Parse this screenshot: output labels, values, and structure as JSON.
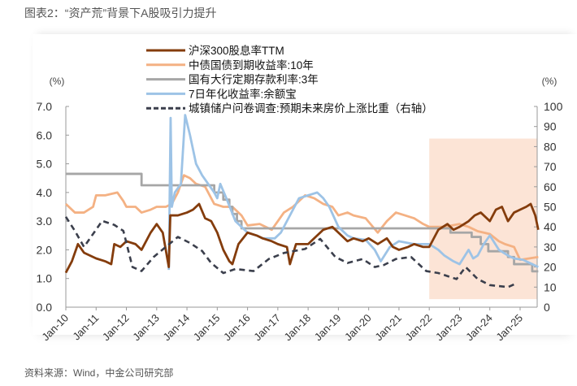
{
  "title": "图表2：“资产荒”背景下A股吸引力提升",
  "source": "资料来源：Wind，中金公司研究部",
  "chart_data": {
    "type": "line",
    "title": "",
    "ylabel_left": "(%)",
    "ylabel_right": "(%)",
    "ylim_left": [
      0,
      7
    ],
    "ylim_right": [
      0,
      100
    ],
    "yticks_left": [
      "0.0",
      "1.0",
      "2.0",
      "3.0",
      "4.0",
      "5.0",
      "6.0",
      "7.0"
    ],
    "yticks_right": [
      "0",
      "10",
      "20",
      "30",
      "40",
      "50",
      "60",
      "70",
      "80",
      "90",
      "100"
    ],
    "xlim": [
      2010.0,
      2025.6
    ],
    "xticks": [
      "Jan-10",
      "Jan-11",
      "Jan-12",
      "Jan-13",
      "Jan-14",
      "Jan-15",
      "Jan-16",
      "Jan-17",
      "Jan-18",
      "Jan-19",
      "Jan-20",
      "Jan-21",
      "Jan-22",
      "Jan-23",
      "Jan-24",
      "Jan-25"
    ],
    "legend_placement": "top-center",
    "grid": false,
    "shaded_region": {
      "x": [
        2022.0,
        2025.6
      ],
      "y_right": [
        4,
        84
      ],
      "color": "#fce4d6"
    },
    "series": [
      {
        "name": "沪深300股息率TTM",
        "axis": "left",
        "color": "#843c0c",
        "style": "solid",
        "points": [
          [
            2010.0,
            1.2
          ],
          [
            2010.2,
            1.6
          ],
          [
            2010.4,
            2.2
          ],
          [
            2010.6,
            1.9
          ],
          [
            2010.8,
            1.8
          ],
          [
            2011.0,
            1.7
          ],
          [
            2011.3,
            1.6
          ],
          [
            2011.5,
            1.5
          ],
          [
            2011.6,
            2.2
          ],
          [
            2011.8,
            2.1
          ],
          [
            2012.0,
            2.3
          ],
          [
            2012.3,
            2.2
          ],
          [
            2012.5,
            2.0
          ],
          [
            2012.8,
            2.6
          ],
          [
            2013.0,
            2.9
          ],
          [
            2013.2,
            2.6
          ],
          [
            2013.4,
            1.4
          ],
          [
            2013.45,
            3.2
          ],
          [
            2013.7,
            3.2
          ],
          [
            2014.0,
            3.3
          ],
          [
            2014.2,
            3.4
          ],
          [
            2014.4,
            3.6
          ],
          [
            2014.6,
            3.1
          ],
          [
            2014.8,
            3.0
          ],
          [
            2015.0,
            2.6
          ],
          [
            2015.2,
            2.0
          ],
          [
            2015.4,
            1.6
          ],
          [
            2015.5,
            1.5
          ],
          [
            2015.7,
            2.2
          ],
          [
            2016.0,
            2.6
          ],
          [
            2016.3,
            2.5
          ],
          [
            2016.5,
            2.4
          ],
          [
            2016.8,
            2.3
          ],
          [
            2017.0,
            2.2
          ],
          [
            2017.3,
            2.1
          ],
          [
            2017.4,
            1.5
          ],
          [
            2017.6,
            2.2
          ],
          [
            2018.0,
            2.2
          ],
          [
            2018.3,
            2.5
          ],
          [
            2018.5,
            2.7
          ],
          [
            2018.8,
            2.8
          ],
          [
            2019.0,
            2.6
          ],
          [
            2019.3,
            2.3
          ],
          [
            2019.5,
            2.4
          ],
          [
            2019.8,
            2.3
          ],
          [
            2020.0,
            2.4
          ],
          [
            2020.3,
            2.2
          ],
          [
            2020.6,
            2.4
          ],
          [
            2020.8,
            2.1
          ],
          [
            2021.0,
            2.0
          ],
          [
            2021.3,
            2.1
          ],
          [
            2021.5,
            2.2
          ],
          [
            2021.8,
            2.1
          ],
          [
            2022.0,
            2.1
          ],
          [
            2022.3,
            2.7
          ],
          [
            2022.6,
            2.9
          ],
          [
            2022.8,
            2.7
          ],
          [
            2023.0,
            2.8
          ],
          [
            2023.3,
            3.0
          ],
          [
            2023.5,
            3.2
          ],
          [
            2023.7,
            3.3
          ],
          [
            2024.0,
            3.0
          ],
          [
            2024.2,
            3.4
          ],
          [
            2024.4,
            3.5
          ],
          [
            2024.6,
            3.0
          ],
          [
            2024.8,
            3.3
          ],
          [
            2025.0,
            3.4
          ],
          [
            2025.2,
            3.5
          ],
          [
            2025.35,
            3.6
          ],
          [
            2025.5,
            3.2
          ],
          [
            2025.6,
            2.7
          ]
        ]
      },
      {
        "name": "中债国债到期收益率:10年",
        "axis": "left",
        "color": "#f4b183",
        "style": "solid",
        "points": [
          [
            2010.0,
            3.6
          ],
          [
            2010.3,
            3.3
          ],
          [
            2010.6,
            3.3
          ],
          [
            2010.9,
            3.5
          ],
          [
            2011.0,
            3.9
          ],
          [
            2011.3,
            3.9
          ],
          [
            2011.7,
            4.0
          ],
          [
            2011.9,
            3.7
          ],
          [
            2012.0,
            3.5
          ],
          [
            2012.3,
            3.5
          ],
          [
            2012.5,
            3.3
          ],
          [
            2012.8,
            3.4
          ],
          [
            2013.0,
            3.5
          ],
          [
            2013.3,
            3.5
          ],
          [
            2013.5,
            3.6
          ],
          [
            2013.7,
            4.0
          ],
          [
            2013.9,
            4.6
          ],
          [
            2014.1,
            4.5
          ],
          [
            2014.3,
            4.3
          ],
          [
            2014.6,
            4.2
          ],
          [
            2014.9,
            3.6
          ],
          [
            2015.2,
            3.5
          ],
          [
            2015.5,
            3.5
          ],
          [
            2015.8,
            3.2
          ],
          [
            2016.0,
            2.85
          ],
          [
            2016.4,
            2.9
          ],
          [
            2016.8,
            2.7
          ],
          [
            2017.0,
            3.0
          ],
          [
            2017.2,
            3.3
          ],
          [
            2017.5,
            3.5
          ],
          [
            2017.9,
            3.9
          ],
          [
            2018.2,
            3.8
          ],
          [
            2018.5,
            3.6
          ],
          [
            2018.8,
            3.5
          ],
          [
            2019.0,
            3.2
          ],
          [
            2019.3,
            3.3
          ],
          [
            2019.5,
            3.2
          ],
          [
            2019.9,
            3.1
          ],
          [
            2020.3,
            2.6
          ],
          [
            2020.6,
            3.0
          ],
          [
            2020.9,
            3.3
          ],
          [
            2021.2,
            3.2
          ],
          [
            2021.5,
            3.1
          ],
          [
            2021.8,
            2.9
          ],
          [
            2022.0,
            2.8
          ],
          [
            2022.5,
            2.8
          ],
          [
            2023.0,
            2.9
          ],
          [
            2023.3,
            2.8
          ],
          [
            2023.6,
            2.65
          ],
          [
            2024.0,
            2.55
          ],
          [
            2024.3,
            2.3
          ],
          [
            2024.5,
            2.2
          ],
          [
            2024.8,
            2.1
          ],
          [
            2025.0,
            1.65
          ],
          [
            2025.3,
            1.7
          ],
          [
            2025.6,
            1.75
          ]
        ]
      },
      {
        "name": "国有大行定期存款利率:3年",
        "axis": "left",
        "color": "#a6a6a6",
        "style": "step",
        "points": [
          [
            2010.0,
            4.65
          ],
          [
            2012.5,
            4.25
          ],
          [
            2014.9,
            4.0
          ],
          [
            2015.2,
            3.75
          ],
          [
            2015.4,
            3.5
          ],
          [
            2015.5,
            3.25
          ],
          [
            2015.65,
            3.0
          ],
          [
            2015.8,
            2.75
          ],
          [
            2022.7,
            2.6
          ],
          [
            2023.4,
            2.45
          ],
          [
            2023.7,
            2.2
          ],
          [
            2023.95,
            1.95
          ],
          [
            2024.6,
            1.75
          ],
          [
            2024.8,
            1.5
          ],
          [
            2025.4,
            1.25
          ],
          [
            2025.6,
            1.25
          ]
        ]
      },
      {
        "name": "7日年化收益率:余额宝",
        "axis": "left",
        "color": "#9dc3e6",
        "style": "solid",
        "points": [
          [
            2013.4,
            1.3
          ],
          [
            2013.46,
            6.6
          ],
          [
            2013.5,
            3.5
          ],
          [
            2013.6,
            4.0
          ],
          [
            2013.8,
            4.3
          ],
          [
            2013.94,
            6.7
          ],
          [
            2014.1,
            6.0
          ],
          [
            2014.3,
            5.0
          ],
          [
            2014.5,
            4.6
          ],
          [
            2014.7,
            4.3
          ],
          [
            2014.9,
            4.0
          ],
          [
            2015.0,
            3.8
          ],
          [
            2015.1,
            4.3
          ],
          [
            2015.3,
            3.8
          ],
          [
            2015.6,
            3.0
          ],
          [
            2015.8,
            2.8
          ],
          [
            2016.0,
            2.6
          ],
          [
            2016.3,
            2.5
          ],
          [
            2016.5,
            2.4
          ],
          [
            2016.9,
            2.4
          ],
          [
            2017.1,
            2.6
          ],
          [
            2017.3,
            3.0
          ],
          [
            2017.5,
            3.4
          ],
          [
            2017.7,
            3.8
          ],
          [
            2018.0,
            3.9
          ],
          [
            2018.3,
            4.0
          ],
          [
            2018.5,
            3.8
          ],
          [
            2018.7,
            3.5
          ],
          [
            2019.0,
            2.8
          ],
          [
            2019.3,
            2.5
          ],
          [
            2019.5,
            2.4
          ],
          [
            2019.9,
            2.35
          ],
          [
            2020.2,
            2.0
          ],
          [
            2020.4,
            1.6
          ],
          [
            2020.7,
            2.1
          ],
          [
            2021.0,
            2.3
          ],
          [
            2021.5,
            2.2
          ],
          [
            2022.0,
            2.2
          ],
          [
            2022.3,
            2.0
          ],
          [
            2022.5,
            1.8
          ],
          [
            2022.8,
            1.6
          ],
          [
            2023.0,
            1.5
          ],
          [
            2023.3,
            2.0
          ],
          [
            2023.45,
            1.7
          ],
          [
            2023.6,
            1.8
          ],
          [
            2023.8,
            2.2
          ],
          [
            2024.0,
            2.5
          ],
          [
            2024.3,
            2.0
          ],
          [
            2024.6,
            1.8
          ],
          [
            2024.8,
            1.7
          ],
          [
            2025.1,
            1.65
          ],
          [
            2025.4,
            1.5
          ],
          [
            2025.6,
            1.4
          ]
        ]
      },
      {
        "name": "城镇储户问卷调查:预期未来房价上涨比重（右轴）",
        "axis": "right",
        "color": "#3b3f4c",
        "style": "dashed",
        "points": [
          [
            2010.0,
            45
          ],
          [
            2010.3,
            38
          ],
          [
            2010.6,
            30
          ],
          [
            2011.2,
            43
          ],
          [
            2011.6,
            41
          ],
          [
            2011.9,
            38
          ],
          [
            2012.2,
            20
          ],
          [
            2012.5,
            18
          ],
          [
            2012.9,
            25
          ],
          [
            2013.3,
            30
          ],
          [
            2013.7,
            35
          ],
          [
            2014.1,
            32
          ],
          [
            2014.5,
            28
          ],
          [
            2014.8,
            22
          ],
          [
            2015.2,
            17
          ],
          [
            2015.6,
            19
          ],
          [
            2016.2,
            18
          ],
          [
            2016.7,
            24
          ],
          [
            2017.2,
            27
          ],
          [
            2017.9,
            29
          ],
          [
            2018.4,
            34
          ],
          [
            2018.9,
            25
          ],
          [
            2019.3,
            22
          ],
          [
            2019.8,
            24
          ],
          [
            2020.2,
            20
          ],
          [
            2020.5,
            21
          ],
          [
            2020.9,
            24
          ],
          [
            2021.4,
            25
          ],
          [
            2021.9,
            18
          ],
          [
            2022.3,
            17
          ],
          [
            2022.9,
            14
          ],
          [
            2023.2,
            20
          ],
          [
            2023.6,
            14
          ],
          [
            2024.0,
            11
          ],
          [
            2024.6,
            10
          ],
          [
            2024.9,
            12
          ]
        ]
      }
    ]
  }
}
